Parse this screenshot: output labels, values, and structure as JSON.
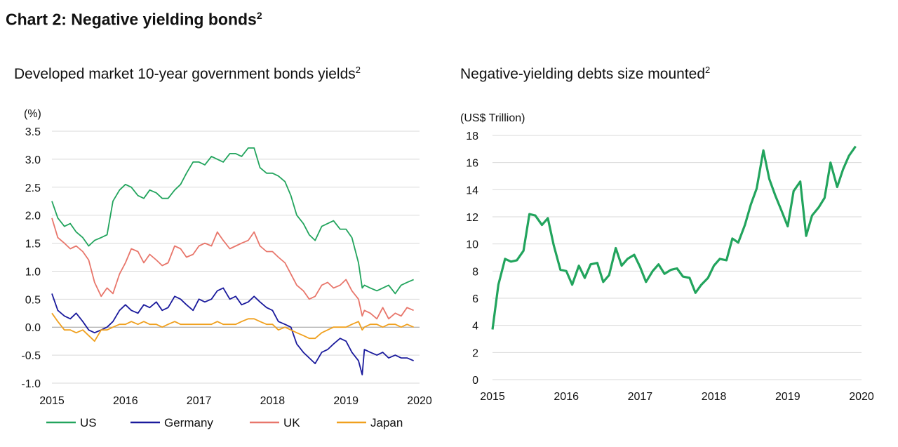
{
  "title": "Chart 2: Negative yielding bonds",
  "title_sup": "2",
  "chart_data": [
    {
      "type": "line",
      "title": "Developed market 10-year government bonds yields",
      "title_sup": "2",
      "ylabel": "(%)",
      "ylim": [
        -1.0,
        3.5
      ],
      "yticks": [
        3.5,
        3.0,
        2.5,
        2.0,
        1.5,
        1.0,
        0.5,
        0.0,
        -0.5,
        -1.0
      ],
      "ytick_labels": [
        "3.5",
        "3.0",
        "2.5",
        "2.0",
        "1.5",
        "1.0",
        "0.5",
        "0.0",
        "-0.5",
        "-1.0"
      ],
      "xlim": [
        2015,
        2020
      ],
      "xticks": [
        "2015",
        "2016",
        "2017",
        "2018",
        "2019",
        "2020"
      ],
      "grid": "horizontal",
      "legend": "bottom",
      "series": [
        {
          "name": "US",
          "color": "#22a45d",
          "x": [
            2015.0,
            2015.08,
            2015.17,
            2015.25,
            2015.33,
            2015.42,
            2015.5,
            2015.58,
            2015.67,
            2015.75,
            2015.83,
            2015.92,
            2016.0,
            2016.08,
            2016.17,
            2016.25,
            2016.33,
            2016.42,
            2016.5,
            2016.58,
            2016.67,
            2016.75,
            2016.83,
            2016.92,
            2017.0,
            2017.08,
            2017.17,
            2017.25,
            2017.33,
            2017.42,
            2017.5,
            2017.58,
            2017.67,
            2017.75,
            2017.83,
            2017.92,
            2018.0,
            2018.08,
            2018.17,
            2018.25,
            2018.33,
            2018.42,
            2018.5,
            2018.58,
            2018.67,
            2018.75,
            2018.83,
            2018.92,
            2019.0,
            2019.08,
            2019.17,
            2019.22,
            2019.25,
            2019.33,
            2019.42,
            2019.5,
            2019.58,
            2019.67,
            2019.75,
            2019.83,
            2019.92
          ],
          "y": [
            2.25,
            1.95,
            1.8,
            1.85,
            1.7,
            1.6,
            1.45,
            1.55,
            1.6,
            1.65,
            2.25,
            2.45,
            2.55,
            2.5,
            2.35,
            2.3,
            2.45,
            2.4,
            2.3,
            2.3,
            2.45,
            2.55,
            2.75,
            2.95,
            2.95,
            2.9,
            3.05,
            3.0,
            2.95,
            3.1,
            3.1,
            3.05,
            3.2,
            3.2,
            2.85,
            2.75,
            2.75,
            2.7,
            2.6,
            2.35,
            2.0,
            1.85,
            1.65,
            1.55,
            1.8,
            1.85,
            1.9,
            1.75,
            1.75,
            1.6,
            1.15,
            0.7,
            0.75,
            0.7,
            0.65,
            0.7,
            0.75,
            0.6,
            0.75,
            0.8,
            0.85
          ]
        },
        {
          "name": "Germany",
          "color": "#1a1a9c",
          "x": [
            2015.0,
            2015.08,
            2015.17,
            2015.25,
            2015.33,
            2015.42,
            2015.5,
            2015.58,
            2015.67,
            2015.75,
            2015.83,
            2015.92,
            2016.0,
            2016.08,
            2016.17,
            2016.25,
            2016.33,
            2016.42,
            2016.5,
            2016.58,
            2016.67,
            2016.75,
            2016.83,
            2016.92,
            2017.0,
            2017.08,
            2017.17,
            2017.25,
            2017.33,
            2017.42,
            2017.5,
            2017.58,
            2017.67,
            2017.75,
            2017.83,
            2017.92,
            2018.0,
            2018.08,
            2018.17,
            2018.25,
            2018.33,
            2018.42,
            2018.5,
            2018.58,
            2018.67,
            2018.75,
            2018.83,
            2018.92,
            2019.0,
            2019.08,
            2019.17,
            2019.22,
            2019.25,
            2019.33,
            2019.42,
            2019.5,
            2019.58,
            2019.67,
            2019.75,
            2019.83,
            2019.92
          ],
          "y": [
            0.6,
            0.3,
            0.2,
            0.15,
            0.25,
            0.1,
            -0.05,
            -0.1,
            -0.05,
            0.0,
            0.1,
            0.3,
            0.4,
            0.3,
            0.25,
            0.4,
            0.35,
            0.45,
            0.3,
            0.35,
            0.55,
            0.5,
            0.4,
            0.3,
            0.5,
            0.45,
            0.5,
            0.65,
            0.7,
            0.5,
            0.55,
            0.4,
            0.45,
            0.55,
            0.45,
            0.35,
            0.3,
            0.1,
            0.05,
            0.0,
            -0.3,
            -0.45,
            -0.55,
            -0.65,
            -0.45,
            -0.4,
            -0.3,
            -0.2,
            -0.25,
            -0.45,
            -0.6,
            -0.85,
            -0.4,
            -0.45,
            -0.5,
            -0.45,
            -0.55,
            -0.5,
            -0.55,
            -0.55,
            -0.6
          ]
        },
        {
          "name": "UK",
          "color": "#e8766b",
          "x": [
            2015.0,
            2015.08,
            2015.17,
            2015.25,
            2015.33,
            2015.42,
            2015.5,
            2015.58,
            2015.67,
            2015.75,
            2015.83,
            2015.92,
            2016.0,
            2016.08,
            2016.17,
            2016.25,
            2016.33,
            2016.42,
            2016.5,
            2016.58,
            2016.67,
            2016.75,
            2016.83,
            2016.92,
            2017.0,
            2017.08,
            2017.17,
            2017.25,
            2017.33,
            2017.42,
            2017.5,
            2017.58,
            2017.67,
            2017.75,
            2017.83,
            2017.92,
            2018.0,
            2018.08,
            2018.17,
            2018.25,
            2018.33,
            2018.42,
            2018.5,
            2018.58,
            2018.67,
            2018.75,
            2018.83,
            2018.92,
            2019.0,
            2019.08,
            2019.17,
            2019.22,
            2019.25,
            2019.33,
            2019.42,
            2019.5,
            2019.58,
            2019.67,
            2019.75,
            2019.83,
            2019.92
          ],
          "y": [
            1.95,
            1.6,
            1.5,
            1.4,
            1.45,
            1.35,
            1.2,
            0.8,
            0.55,
            0.7,
            0.6,
            0.95,
            1.15,
            1.4,
            1.35,
            1.15,
            1.3,
            1.2,
            1.1,
            1.15,
            1.45,
            1.4,
            1.25,
            1.3,
            1.45,
            1.5,
            1.45,
            1.7,
            1.55,
            1.4,
            1.45,
            1.5,
            1.55,
            1.7,
            1.45,
            1.35,
            1.35,
            1.25,
            1.15,
            0.95,
            0.75,
            0.65,
            0.5,
            0.55,
            0.75,
            0.8,
            0.7,
            0.75,
            0.85,
            0.65,
            0.5,
            0.2,
            0.3,
            0.25,
            0.15,
            0.35,
            0.15,
            0.25,
            0.2,
            0.35,
            0.3
          ]
        },
        {
          "name": "Japan",
          "color": "#f0a01e",
          "x": [
            2015.0,
            2015.08,
            2015.17,
            2015.25,
            2015.33,
            2015.42,
            2015.5,
            2015.58,
            2015.67,
            2015.75,
            2015.83,
            2015.92,
            2016.0,
            2016.08,
            2016.17,
            2016.25,
            2016.33,
            2016.42,
            2016.5,
            2016.58,
            2016.67,
            2016.75,
            2016.83,
            2016.92,
            2017.0,
            2017.08,
            2017.17,
            2017.25,
            2017.33,
            2017.42,
            2017.5,
            2017.58,
            2017.67,
            2017.75,
            2017.83,
            2017.92,
            2018.0,
            2018.08,
            2018.17,
            2018.25,
            2018.33,
            2018.42,
            2018.5,
            2018.58,
            2018.67,
            2018.75,
            2018.83,
            2018.92,
            2019.0,
            2019.08,
            2019.17,
            2019.22,
            2019.25,
            2019.33,
            2019.42,
            2019.5,
            2019.58,
            2019.67,
            2019.75,
            2019.83,
            2019.92
          ],
          "y": [
            0.25,
            0.1,
            -0.05,
            -0.05,
            -0.1,
            -0.05,
            -0.15,
            -0.25,
            -0.05,
            -0.05,
            0.0,
            0.05,
            0.05,
            0.1,
            0.05,
            0.1,
            0.05,
            0.05,
            0.0,
            0.05,
            0.1,
            0.05,
            0.05,
            0.05,
            0.05,
            0.05,
            0.05,
            0.1,
            0.05,
            0.05,
            0.05,
            0.1,
            0.15,
            0.15,
            0.1,
            0.05,
            0.05,
            -0.05,
            0.0,
            -0.05,
            -0.1,
            -0.15,
            -0.2,
            -0.2,
            -0.1,
            -0.05,
            0.0,
            0.0,
            0.0,
            0.05,
            0.1,
            -0.05,
            0.0,
            0.05,
            0.05,
            0.0,
            0.05,
            0.05,
            0.0,
            0.05,
            0.0
          ]
        }
      ]
    },
    {
      "type": "line",
      "title": "Negative-yielding debts size mounted",
      "title_sup": "2",
      "ylabel": "(US$ Trillion)",
      "ylim": [
        0,
        18
      ],
      "yticks": [
        18,
        16,
        14,
        12,
        10,
        8,
        6,
        4,
        2,
        0
      ],
      "ytick_labels": [
        "18",
        "16",
        "14",
        "12",
        "10",
        "8",
        "6",
        "4",
        "2",
        "0"
      ],
      "xlim": [
        2015,
        2020
      ],
      "xticks": [
        "2015",
        "2016",
        "2017",
        "2018",
        "2019",
        "2020"
      ],
      "grid": "horizontal",
      "legend": "none",
      "series": [
        {
          "color": "#22a45d",
          "x": [
            2015.0,
            2015.08,
            2015.17,
            2015.25,
            2015.33,
            2015.42,
            2015.5,
            2015.58,
            2015.67,
            2015.75,
            2015.83,
            2015.92,
            2016.0,
            2016.08,
            2016.17,
            2016.25,
            2016.33,
            2016.42,
            2016.5,
            2016.58,
            2016.67,
            2016.75,
            2016.83,
            2016.92,
            2017.0,
            2017.08,
            2017.17,
            2017.25,
            2017.33,
            2017.42,
            2017.5,
            2017.58,
            2017.67,
            2017.75,
            2017.83,
            2017.92,
            2018.0,
            2018.08,
            2018.17,
            2018.25,
            2018.33,
            2018.42,
            2018.5,
            2018.58,
            2018.67,
            2018.75,
            2018.83,
            2018.92,
            2019.0,
            2019.08,
            2019.17,
            2019.25,
            2019.33,
            2019.42,
            2019.5,
            2019.58,
            2019.67,
            2019.75,
            2019.83,
            2019.92
          ],
          "y": [
            3.7,
            7.0,
            8.9,
            8.7,
            8.8,
            9.5,
            12.2,
            12.1,
            11.4,
            11.9,
            9.9,
            8.1,
            8.0,
            7.0,
            8.4,
            7.5,
            8.5,
            8.6,
            7.2,
            7.7,
            9.7,
            8.4,
            8.9,
            9.2,
            8.3,
            7.2,
            8.0,
            8.5,
            7.8,
            8.1,
            8.2,
            7.6,
            7.5,
            6.4,
            7.0,
            7.5,
            8.4,
            8.9,
            8.8,
            10.4,
            10.1,
            11.4,
            12.9,
            14.1,
            16.9,
            14.8,
            13.6,
            12.4,
            11.3,
            13.9,
            14.6,
            10.6,
            12.1,
            12.7,
            13.4,
            16.0,
            14.2,
            15.5,
            16.5,
            17.2
          ]
        }
      ]
    }
  ]
}
